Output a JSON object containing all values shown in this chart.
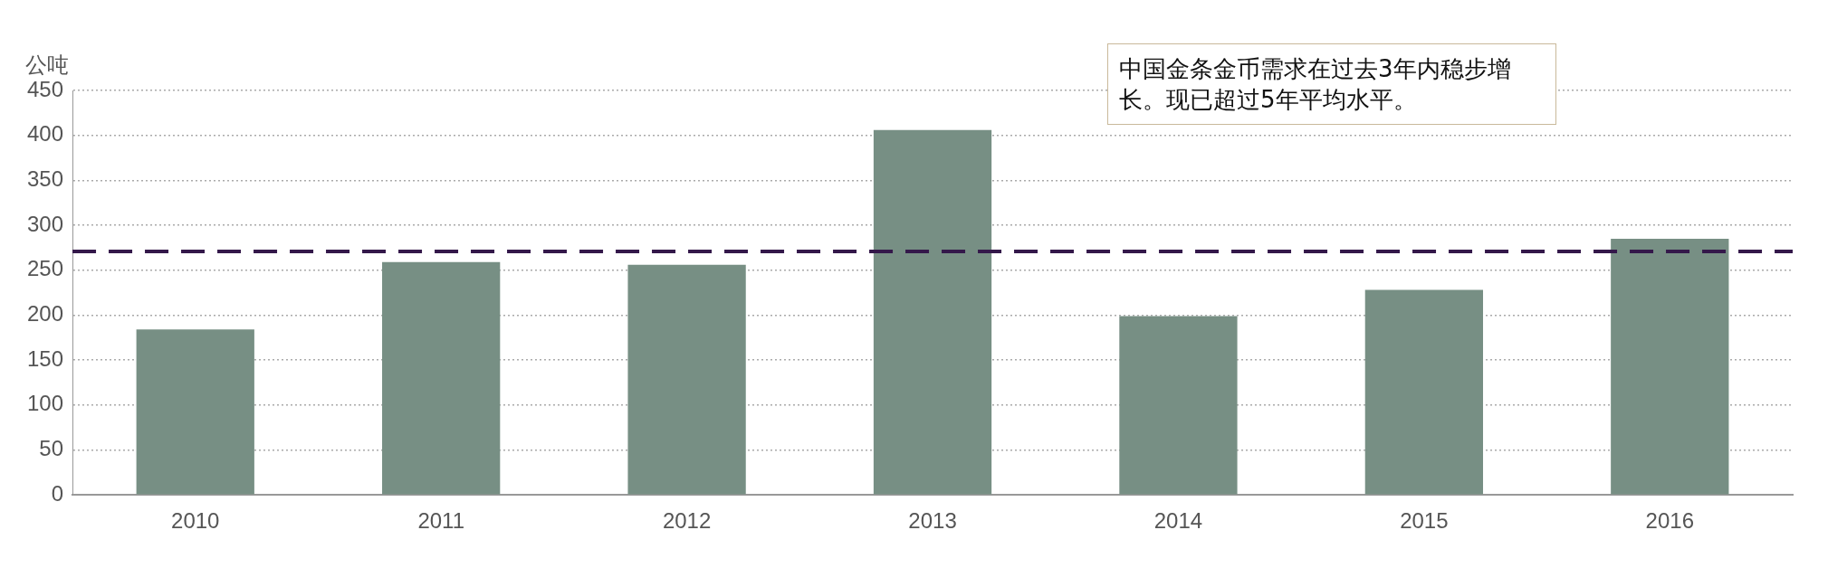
{
  "chart_data": {
    "type": "bar",
    "ylabel": "公吨",
    "categories": [
      "2010",
      "2011",
      "2012",
      "2013",
      "2014",
      "2015",
      "2016"
    ],
    "values": [
      184,
      259,
      256,
      406,
      199,
      228,
      285
    ],
    "color": "#778f84",
    "ylim": [
      0,
      450
    ],
    "yticks": [
      0,
      50,
      100,
      150,
      200,
      250,
      300,
      350,
      400,
      450
    ],
    "grid": "y",
    "legend": false,
    "ref_lines": [
      {
        "axis": "y",
        "value": 271,
        "color": "#34184a",
        "line_style": "dashed"
      }
    ],
    "annotations": [
      "中国金条金币需求在过去3年内稳步增长。现已超过5年平均水平。"
    ]
  }
}
